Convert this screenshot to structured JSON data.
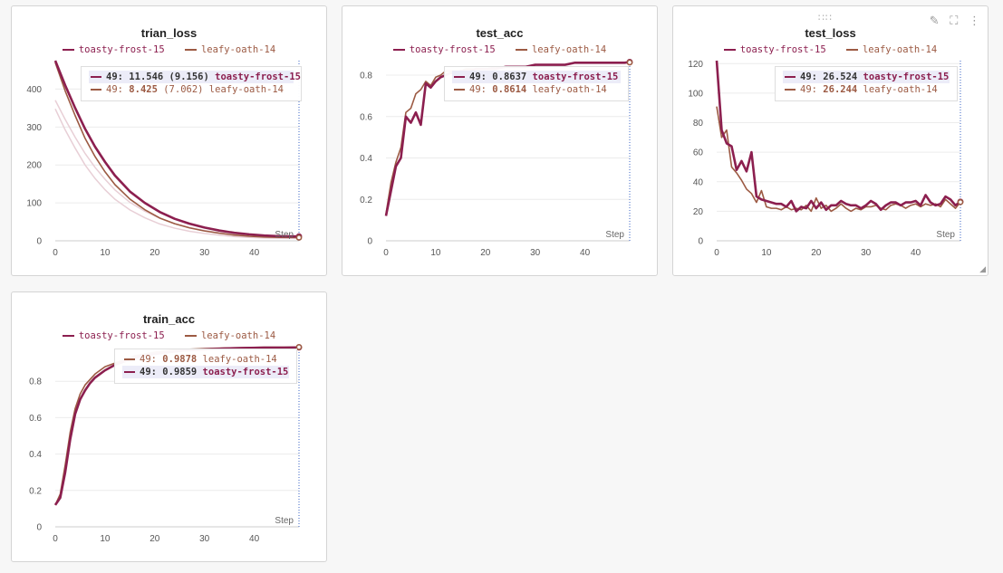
{
  "colors": {
    "toasty": "#8c1f4f",
    "leafy": "#9c5a43",
    "faint": "#e8cfd6",
    "grid": "#ececec"
  },
  "chart_data": [
    {
      "type": "line",
      "title": "trian_loss",
      "xlabel": "Step",
      "ylabel": "",
      "xlim": [
        0,
        49
      ],
      "ylim": [
        0,
        475
      ],
      "xticks": [
        0,
        10,
        20,
        30,
        40
      ],
      "yticks": [
        0,
        100,
        200,
        300,
        400
      ],
      "series": [
        {
          "name": "toasty-frost-15",
          "x": [
            0,
            2,
            4,
            6,
            8,
            10,
            12,
            15,
            18,
            21,
            24,
            27,
            30,
            33,
            36,
            39,
            42,
            45,
            49
          ],
          "y": [
            475,
            410,
            350,
            295,
            248,
            208,
            172,
            130,
            100,
            76,
            58,
            45,
            35,
            27,
            21,
            17,
            14,
            12,
            11.5
          ]
        },
        {
          "name": "leafy-oath-14",
          "x": [
            0,
            2,
            4,
            6,
            8,
            10,
            12,
            15,
            18,
            21,
            24,
            27,
            30,
            33,
            36,
            39,
            42,
            45,
            49
          ],
          "y": [
            470,
            395,
            330,
            270,
            222,
            182,
            148,
            110,
            82,
            60,
            45,
            34,
            26,
            20,
            15,
            12,
            10,
            9,
            8.4
          ]
        }
      ],
      "tooltip": [
        {
          "series": "toasty-frost-15",
          "step": "49",
          "value": "11.546",
          "extra": "(9.156)",
          "highlight": true
        },
        {
          "series": "leafy-oath-14",
          "step": "49",
          "value": "8.425",
          "extra": "(7.062)",
          "highlight": false
        }
      ]
    },
    {
      "type": "line",
      "title": "test_acc",
      "xlabel": "Step",
      "ylabel": "",
      "xlim": [
        0,
        49
      ],
      "ylim": [
        0,
        0.87
      ],
      "xticks": [
        0,
        10,
        20,
        30,
        40
      ],
      "yticks": [
        0,
        0.2,
        0.4,
        0.6,
        0.8
      ],
      "series": [
        {
          "name": "toasty-frost-15",
          "x": [
            0,
            1,
            2,
            3,
            4,
            5,
            6,
            7,
            8,
            9,
            10,
            11,
            12,
            13,
            14,
            15,
            16,
            17,
            18,
            20,
            22,
            24,
            26,
            28,
            30,
            32,
            34,
            36,
            38,
            40,
            42,
            44,
            46,
            48,
            49
          ],
          "y": [
            0.12,
            0.24,
            0.36,
            0.4,
            0.6,
            0.57,
            0.62,
            0.56,
            0.76,
            0.74,
            0.77,
            0.79,
            0.8,
            0.81,
            0.81,
            0.82,
            0.82,
            0.82,
            0.83,
            0.83,
            0.83,
            0.84,
            0.84,
            0.84,
            0.85,
            0.85,
            0.85,
            0.85,
            0.86,
            0.86,
            0.86,
            0.86,
            0.86,
            0.86,
            0.8637
          ]
        },
        {
          "name": "leafy-oath-14",
          "x": [
            0,
            1,
            2,
            3,
            4,
            5,
            6,
            7,
            8,
            9,
            10,
            11,
            12,
            13,
            14,
            15,
            16,
            17,
            18,
            20,
            22,
            24,
            26,
            28,
            30,
            32,
            34,
            36,
            38,
            40,
            42,
            44,
            46,
            48,
            49
          ],
          "y": [
            0.13,
            0.28,
            0.38,
            0.45,
            0.62,
            0.64,
            0.71,
            0.73,
            0.77,
            0.75,
            0.79,
            0.8,
            0.82,
            0.82,
            0.82,
            0.82,
            0.83,
            0.83,
            0.83,
            0.83,
            0.84,
            0.84,
            0.84,
            0.84,
            0.85,
            0.85,
            0.85,
            0.85,
            0.86,
            0.86,
            0.86,
            0.86,
            0.86,
            0.86,
            0.8614
          ]
        }
      ],
      "tooltip": [
        {
          "series": "toasty-frost-15",
          "step": "49",
          "value": "0.8637",
          "extra": "",
          "highlight": true
        },
        {
          "series": "leafy-oath-14",
          "step": "49",
          "value": "0.8614",
          "extra": "",
          "highlight": false
        }
      ]
    },
    {
      "type": "line",
      "title": "test_loss",
      "xlabel": "Step",
      "ylabel": "",
      "xlim": [
        0,
        49
      ],
      "ylim": [
        0,
        122
      ],
      "xticks": [
        0,
        10,
        20,
        30,
        40
      ],
      "yticks": [
        0,
        20,
        40,
        60,
        80,
        100,
        120
      ],
      "series": [
        {
          "name": "toasty-frost-15",
          "x": [
            0,
            1,
            2,
            3,
            4,
            5,
            6,
            7,
            8,
            9,
            10,
            11,
            12,
            13,
            14,
            15,
            16,
            17,
            18,
            19,
            20,
            21,
            22,
            23,
            24,
            25,
            26,
            27,
            28,
            29,
            30,
            31,
            32,
            33,
            34,
            35,
            36,
            37,
            38,
            39,
            40,
            41,
            42,
            43,
            44,
            45,
            46,
            47,
            48,
            49
          ],
          "y": [
            122,
            75,
            66,
            64,
            48,
            54,
            47,
            60,
            30,
            28,
            27,
            26,
            25,
            25,
            23,
            27,
            20,
            23,
            22,
            27,
            22,
            26,
            21,
            24,
            24,
            27,
            25,
            24,
            24,
            22,
            24,
            27,
            25,
            21,
            24,
            26,
            26,
            24,
            26,
            26,
            27,
            24,
            31,
            26,
            24,
            25,
            30,
            28,
            24,
            26.5
          ]
        },
        {
          "name": "leafy-oath-14",
          "x": [
            0,
            1,
            2,
            3,
            4,
            5,
            6,
            7,
            8,
            9,
            10,
            11,
            12,
            13,
            14,
            15,
            16,
            17,
            18,
            19,
            20,
            21,
            22,
            23,
            24,
            25,
            26,
            27,
            28,
            29,
            30,
            31,
            32,
            33,
            34,
            35,
            36,
            37,
            38,
            39,
            40,
            41,
            42,
            43,
            44,
            45,
            46,
            47,
            48,
            49
          ],
          "y": [
            91,
            70,
            75,
            50,
            46,
            41,
            35,
            32,
            26,
            34,
            23,
            22,
            22,
            21,
            23,
            21,
            22,
            21,
            24,
            20,
            29,
            22,
            24,
            20,
            22,
            25,
            22,
            20,
            22,
            21,
            23,
            23,
            24,
            22,
            21,
            24,
            25,
            24,
            22,
            24,
            25,
            23,
            25,
            24,
            25,
            23,
            28,
            25,
            22,
            26.2
          ]
        }
      ],
      "tooltip": [
        {
          "series": "toasty-frost-15",
          "step": "49",
          "value": "26.524",
          "extra": "",
          "highlight": true
        },
        {
          "series": "leafy-oath-14",
          "step": "49",
          "value": "26.244",
          "extra": "",
          "highlight": false
        }
      ]
    },
    {
      "type": "line",
      "title": "train_acc",
      "xlabel": "Step",
      "ylabel": "",
      "xlim": [
        0,
        49
      ],
      "ylim": [
        0,
        0.99
      ],
      "xticks": [
        0,
        10,
        20,
        30,
        40
      ],
      "yticks": [
        0,
        0.2,
        0.4,
        0.6,
        0.8
      ],
      "series": [
        {
          "name": "toasty-frost-15",
          "x": [
            0,
            1,
            2,
            3,
            4,
            5,
            6,
            7,
            8,
            10,
            12,
            14,
            16,
            18,
            20,
            23,
            26,
            30,
            34,
            38,
            42,
            46,
            49
          ],
          "y": [
            0.12,
            0.16,
            0.3,
            0.48,
            0.62,
            0.7,
            0.75,
            0.79,
            0.82,
            0.86,
            0.89,
            0.91,
            0.93,
            0.94,
            0.95,
            0.96,
            0.97,
            0.975,
            0.98,
            0.983,
            0.985,
            0.985,
            0.9859
          ]
        },
        {
          "name": "leafy-oath-14",
          "x": [
            0,
            1,
            2,
            3,
            4,
            5,
            6,
            7,
            8,
            10,
            12,
            14,
            16,
            18,
            20,
            23,
            26,
            30,
            34,
            38,
            42,
            46,
            49
          ],
          "y": [
            0.12,
            0.18,
            0.34,
            0.52,
            0.65,
            0.73,
            0.78,
            0.81,
            0.84,
            0.88,
            0.9,
            0.92,
            0.94,
            0.95,
            0.96,
            0.97,
            0.975,
            0.98,
            0.983,
            0.985,
            0.987,
            0.987,
            0.9878
          ]
        }
      ],
      "tooltip": [
        {
          "series": "leafy-oath-14",
          "step": "49",
          "value": "0.9878",
          "extra": "",
          "highlight": false
        },
        {
          "series": "toasty-frost-15",
          "step": "49",
          "value": "0.9859",
          "extra": "",
          "highlight": true
        }
      ]
    }
  ]
}
